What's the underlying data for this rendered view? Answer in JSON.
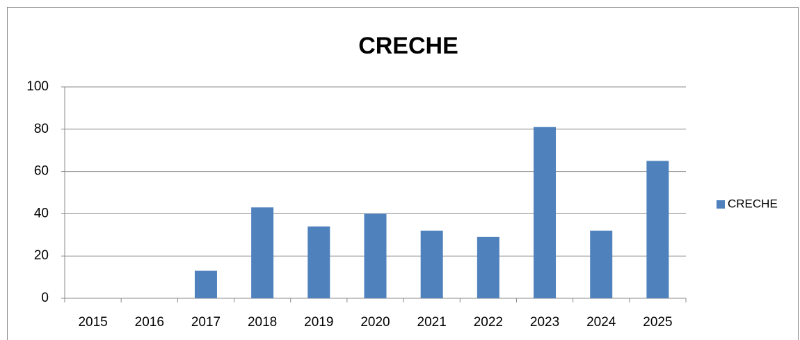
{
  "chart_data": {
    "type": "bar",
    "title": "CRECHE",
    "categories": [
      "2015",
      "2016",
      "2017",
      "2018",
      "2019",
      "2020",
      "2021",
      "2022",
      "2023",
      "2024",
      "2025"
    ],
    "series": [
      {
        "name": "CRECHE",
        "color": "#4f81bd",
        "values": [
          0,
          0,
          13,
          43,
          34,
          40,
          32,
          29,
          81,
          32,
          65
        ]
      }
    ],
    "ylim": [
      0,
      100
    ],
    "yticks": [
      0,
      20,
      40,
      60,
      80,
      100
    ],
    "grid": true,
    "legend": "right"
  }
}
